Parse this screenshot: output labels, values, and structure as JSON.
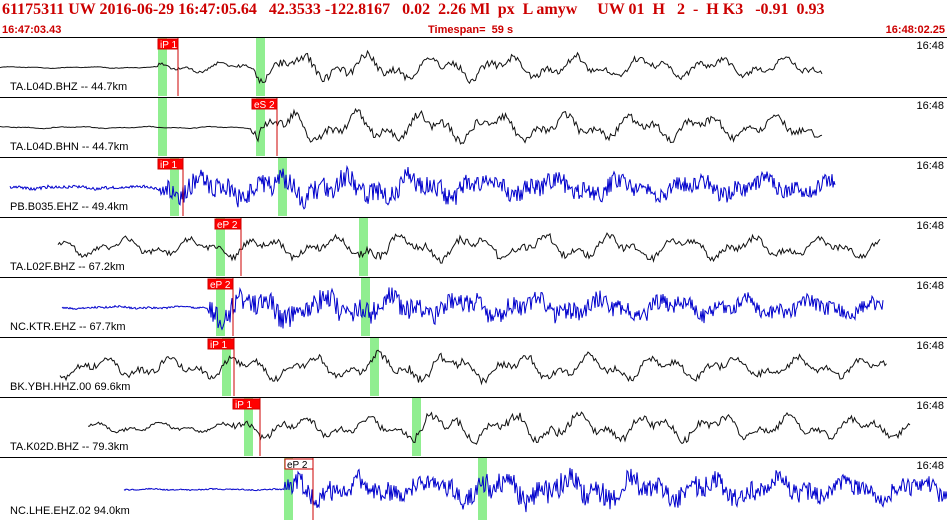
{
  "header": {
    "event_line": "61175311 UW 2016-06-29 16:47:05.64   42.3533 -122.8167   0.02  2.26 Ml  px  L amyw     UW 01  H   2  -  H K3   -0.91  0.93",
    "start_time": "16:47:03.43",
    "timespan_label": "Timespan=  59 s",
    "end_time": "16:48:02.25"
  },
  "colors": {
    "header_text": "#cc0000",
    "pick_fill": "#ff0000",
    "pick_line": "#cc0000",
    "green_band": "#90ee90",
    "trace_black": "#111111",
    "trace_blue": "#0000cc"
  },
  "traces": [
    {
      "label": "TA.L04D.BHZ -- 44.7km",
      "time_label": "16:48",
      "pick_label": "iP 1",
      "trace_color": "black"
    },
    {
      "label": "TA.L04D.BHN -- 44.7km",
      "time_label": "16:48",
      "pick_label": "eS 2",
      "trace_color": "black"
    },
    {
      "label": "PB.B035.EHZ -- 49.4km",
      "time_label": "16:48",
      "pick_label": "iP 1",
      "trace_color": "blue"
    },
    {
      "label": "TA.L02F.BHZ -- 67.2km",
      "time_label": "16:48",
      "pick_label": "eP 2",
      "trace_color": "black"
    },
    {
      "label": "NC.KTR.EHZ -- 67.7km",
      "time_label": "16:48",
      "pick_label": "eP 2",
      "trace_color": "blue"
    },
    {
      "label": "BK.YBH.HHZ.00 69.6km",
      "time_label": "16:48",
      "pick_label": "iP 1",
      "trace_color": "black"
    },
    {
      "label": "TA.K02D.BHZ -- 79.3km",
      "time_label": "16:48",
      "pick_label": "iP 1",
      "trace_color": "black"
    },
    {
      "label": "NC.LHE.EHZ.02 94.0km",
      "time_label": "16:48",
      "pick_label": "eP 2",
      "trace_color": "blue"
    }
  ]
}
